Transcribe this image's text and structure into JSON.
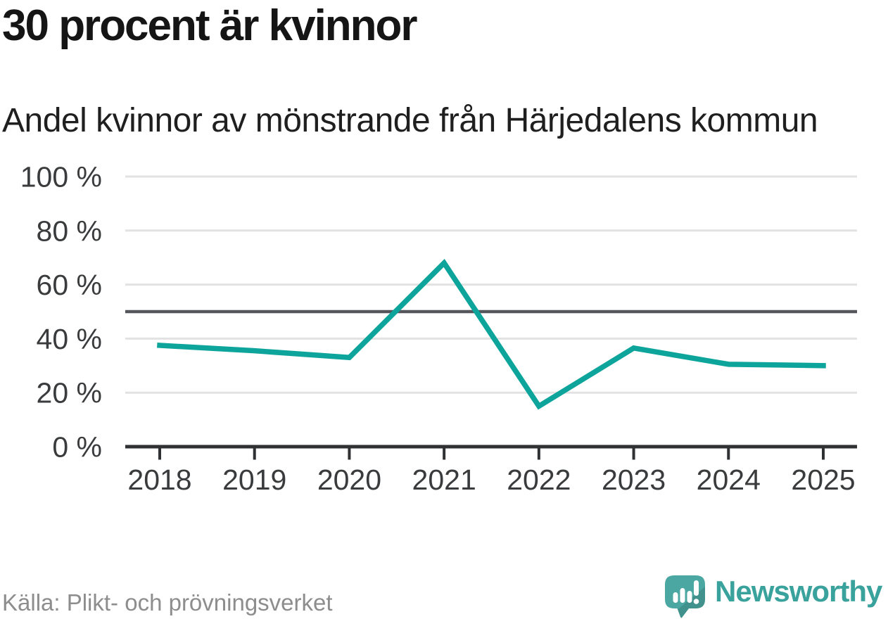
{
  "chart_data": {
    "type": "line",
    "title": "30 procent är kvinnor",
    "subtitle": "Andel kvinnor av mönstrande från Härjedalens kommun",
    "categories": [
      "2018",
      "2019",
      "2020",
      "2021",
      "2022",
      "2023",
      "2024",
      "2025"
    ],
    "values": [
      37.5,
      35.5,
      33,
      68,
      15,
      36.5,
      30.5,
      30
    ],
    "unit": "%",
    "ylim": [
      0,
      100
    ],
    "yticks": [
      0,
      20,
      40,
      60,
      80,
      100
    ],
    "ytick_labels": [
      "0 %",
      "20 %",
      "40 %",
      "60 %",
      "80 %",
      "100 %"
    ],
    "grid": "horizontal",
    "legend": "none",
    "line_color": "#0da59b",
    "grid_color": "#e2e2e2",
    "axis_color": "#2f3133",
    "tick_label_color": "#3a3b3c",
    "reference_line": {
      "value": 50,
      "color": "#55565b"
    }
  },
  "footer": {
    "source": "Källa: Plikt- och prövningsverket",
    "brand": "Newsworthy",
    "brand_color": "#3aa29c",
    "brand_bubble_color": "#4ba7a1"
  }
}
